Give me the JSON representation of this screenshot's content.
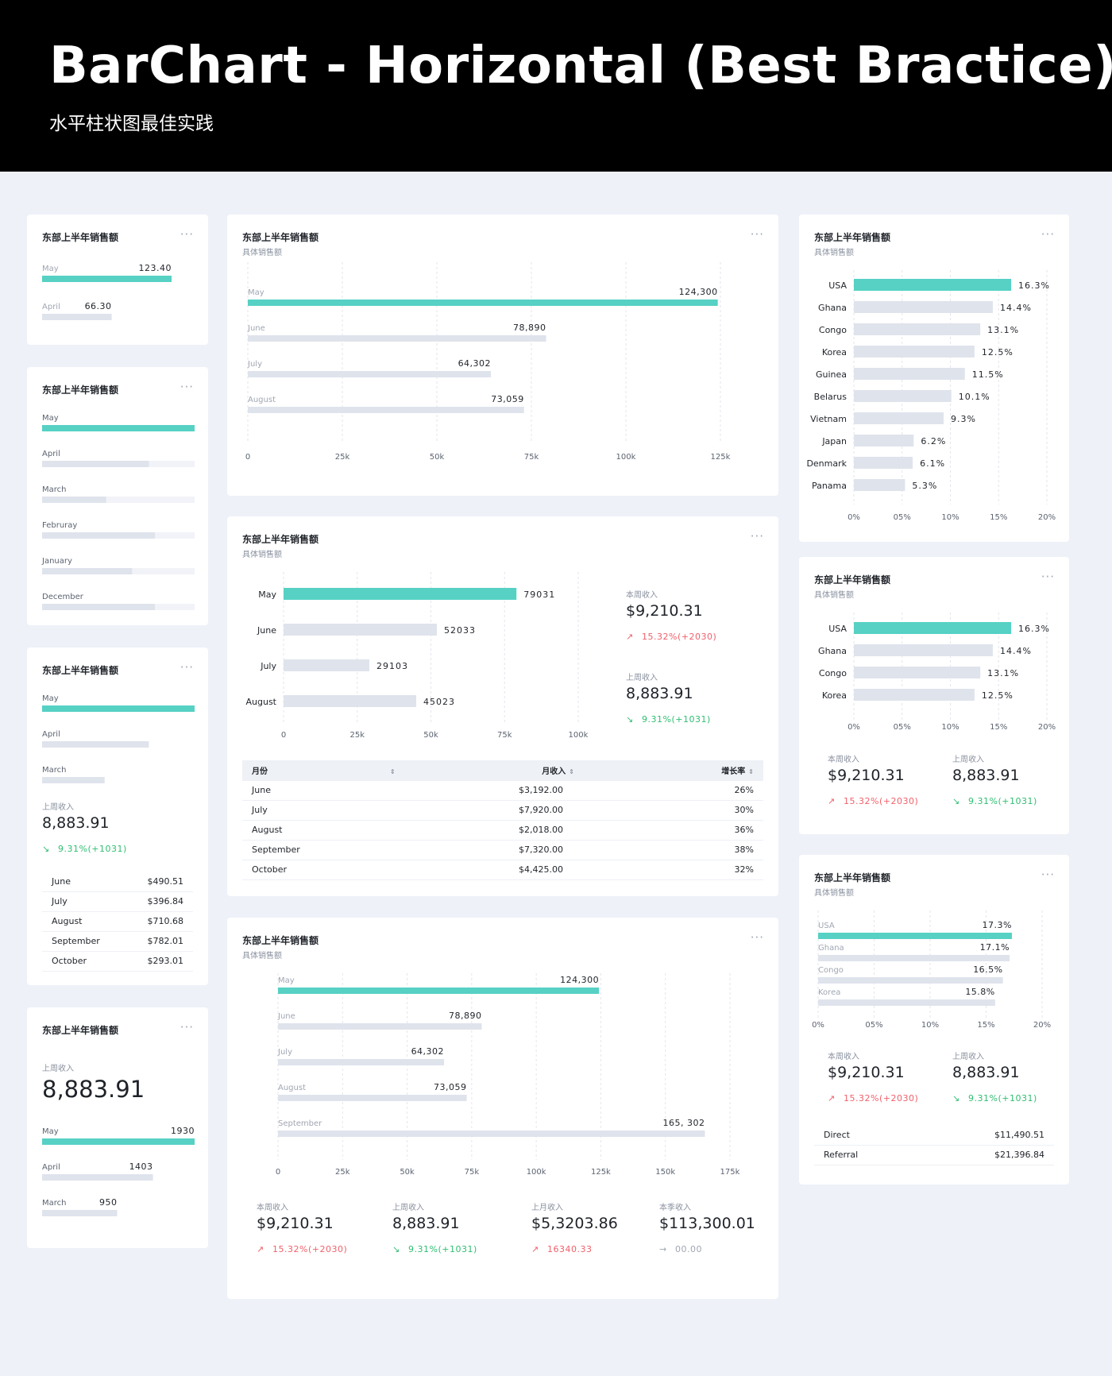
{
  "header": {
    "title": "BarChart - Horizontal (Best Bractice)",
    "subtitle": "水平柱状图最佳实践"
  },
  "common": {
    "card_title": "东部上半年销售额",
    "card_subtitle": "具体销售额",
    "more": "···"
  },
  "colors": {
    "highlight": "#56d1c4",
    "bar": "#dfe3ec",
    "track": "#f1f3f8",
    "up": "#f0616b",
    "down": "#2fbf71",
    "grid": "#e3e6ed"
  },
  "c1": {
    "chart_data": {
      "type": "bar",
      "categories": [
        "May",
        "April"
      ],
      "values": [
        123.4,
        66.3
      ],
      "labels": [
        "123.40",
        "66.30"
      ]
    }
  },
  "c2": {
    "chart_data": {
      "type": "bar",
      "categories": [
        "May",
        "April",
        "March",
        "Februray",
        "January",
        "December"
      ],
      "values": [
        100,
        70,
        42,
        74,
        59,
        74
      ],
      "xlim": [
        0,
        100
      ]
    }
  },
  "c3": {
    "chart_data": {
      "type": "bar",
      "categories": [
        "May",
        "April",
        "March"
      ],
      "values": [
        100,
        70,
        41
      ],
      "xlim": [
        0,
        100
      ]
    },
    "stat_label": "上周收入",
    "stat_value": "8,883.91",
    "stat_change": "9.31%(+1031)",
    "rows": [
      {
        "name": "June",
        "value": "$490.51"
      },
      {
        "name": "July",
        "value": "$396.84"
      },
      {
        "name": "August",
        "value": "$710.68"
      },
      {
        "name": "September",
        "value": "$782.01"
      },
      {
        "name": "October",
        "value": "$293.01"
      }
    ]
  },
  "c4": {
    "stat_label": "上周收入",
    "stat_value": "8,883.91",
    "chart_data": {
      "type": "bar",
      "categories": [
        "May",
        "April",
        "March"
      ],
      "values": [
        1930,
        1403,
        950
      ],
      "labels": [
        "1930",
        "1403",
        "950"
      ],
      "xlim": [
        0,
        1930
      ]
    }
  },
  "m1": {
    "chart_data": {
      "type": "bar",
      "categories": [
        "May",
        "June",
        "July",
        "August"
      ],
      "values": [
        124300,
        78890,
        64302,
        73059
      ],
      "labels": [
        "124,300",
        "78,890",
        "64,302",
        "73,059"
      ],
      "xlim": [
        0,
        125000
      ],
      "ticks": [
        0,
        25000,
        50000,
        75000,
        100000,
        125000
      ],
      "tick_labels": [
        "0",
        "25k",
        "50k",
        "75k",
        "100k",
        "125k"
      ]
    }
  },
  "m2": {
    "chart_data": {
      "type": "bar",
      "categories": [
        "May",
        "June",
        "July",
        "August"
      ],
      "values": [
        79031,
        52033,
        29103,
        45023
      ],
      "labels": [
        "79031",
        "52033",
        "29103",
        "45023"
      ],
      "xlim": [
        0,
        100000
      ],
      "ticks": [
        0,
        25000,
        50000,
        75000,
        100000
      ],
      "tick_labels": [
        "0",
        "25k",
        "50k",
        "75k",
        "100k"
      ]
    },
    "stats": [
      {
        "label": "本周收入",
        "value": "$9,210.31",
        "change": "15.32%(+2030)",
        "dir": "up"
      },
      {
        "label": "上周收入",
        "value": "8,883.91",
        "change": "9.31%(+1031)",
        "dir": "down"
      }
    ],
    "table": {
      "headers": [
        "月份",
        "月收入",
        "增长率"
      ],
      "rows": [
        [
          "June",
          "$3,192.00",
          "26%"
        ],
        [
          "July",
          "$7,920.00",
          "30%"
        ],
        [
          "August",
          "$2,018.00",
          "36%"
        ],
        [
          "September",
          "$7,320.00",
          "38%"
        ],
        [
          "October",
          "$4,425.00",
          "32%"
        ]
      ]
    }
  },
  "m3": {
    "chart_data": {
      "type": "bar",
      "categories": [
        "May",
        "June",
        "July",
        "August",
        "September"
      ],
      "values": [
        124300,
        78890,
        64302,
        73059,
        165302
      ],
      "labels": [
        "124,300",
        "78,890",
        "64,302",
        "73,059",
        "165, 302"
      ],
      "xlim": [
        0,
        175000
      ],
      "ticks": [
        0,
        25000,
        50000,
        75000,
        100000,
        125000,
        150000,
        175000
      ],
      "tick_labels": [
        "0",
        "25k",
        "50k",
        "75k",
        "100k",
        "125k",
        "150k",
        "175k"
      ]
    },
    "stats": [
      {
        "label": "本周收入",
        "value": "$9,210.31",
        "change": "15.32%(+2030)",
        "dir": "up"
      },
      {
        "label": "上周收入",
        "value": "8,883.91",
        "change": "9.31%(+1031)",
        "dir": "down"
      },
      {
        "label": "上月收入",
        "value": "$5,3203.86",
        "change": "16340.33",
        "dir": "up"
      },
      {
        "label": "本季收入",
        "value": "$113,300.01",
        "change": "00.00",
        "dir": "flat"
      }
    ]
  },
  "r1": {
    "chart_data": {
      "type": "bar",
      "categories": [
        "USA",
        "Ghana",
        "Congo",
        "Korea",
        "Guinea",
        "Belarus",
        "Vietnam",
        "Japan",
        "Denmark",
        "Panama"
      ],
      "values": [
        16.3,
        14.4,
        13.1,
        12.5,
        11.5,
        10.1,
        9.3,
        6.2,
        6.1,
        5.3
      ],
      "labels": [
        "16.3%",
        "14.4%",
        "13.1%",
        "12.5%",
        "11.5%",
        "10.1%",
        "9.3%",
        "6.2%",
        "6.1%",
        "5.3%"
      ],
      "xlim": [
        0,
        20
      ],
      "ticks": [
        0,
        5,
        10,
        15,
        20
      ],
      "tick_labels": [
        "0%",
        "05%",
        "10%",
        "15%",
        "20%"
      ]
    }
  },
  "r2": {
    "chart_data": {
      "type": "bar",
      "categories": [
        "USA",
        "Ghana",
        "Congo",
        "Korea"
      ],
      "values": [
        16.3,
        14.4,
        13.1,
        12.5
      ],
      "labels": [
        "16.3%",
        "14.4%",
        "13.1%",
        "12.5%"
      ],
      "xlim": [
        0,
        20
      ],
      "ticks": [
        0,
        5,
        10,
        15,
        20
      ],
      "tick_labels": [
        "0%",
        "05%",
        "10%",
        "15%",
        "20%"
      ]
    },
    "stats": [
      {
        "label": "本周收入",
        "value": "$9,210.31",
        "change": "15.32%(+2030)",
        "dir": "up"
      },
      {
        "label": "上周收入",
        "value": "8,883.91",
        "change": "9.31%(+1031)",
        "dir": "down"
      }
    ]
  },
  "r3": {
    "chart_data": {
      "type": "bar",
      "categories": [
        "USA",
        "Ghana",
        "Congo",
        "Korea"
      ],
      "values": [
        17.3,
        17.1,
        16.5,
        15.8
      ],
      "labels": [
        "17.3%",
        "17.1%",
        "16.5%",
        "15.8%"
      ],
      "xlim": [
        0,
        20
      ],
      "ticks": [
        0,
        5,
        10,
        15,
        20
      ],
      "tick_labels": [
        "0%",
        "05%",
        "10%",
        "15%",
        "20%"
      ]
    },
    "stats": [
      {
        "label": "本周收入",
        "value": "$9,210.31",
        "change": "15.32%(+2030)",
        "dir": "up"
      },
      {
        "label": "上周收入",
        "value": "8,883.91",
        "change": "9.31%(+1031)",
        "dir": "down"
      }
    ],
    "rows": [
      {
        "name": "Direct",
        "value": "$11,490.51"
      },
      {
        "name": "Referral",
        "value": "$21,396.84"
      }
    ]
  }
}
